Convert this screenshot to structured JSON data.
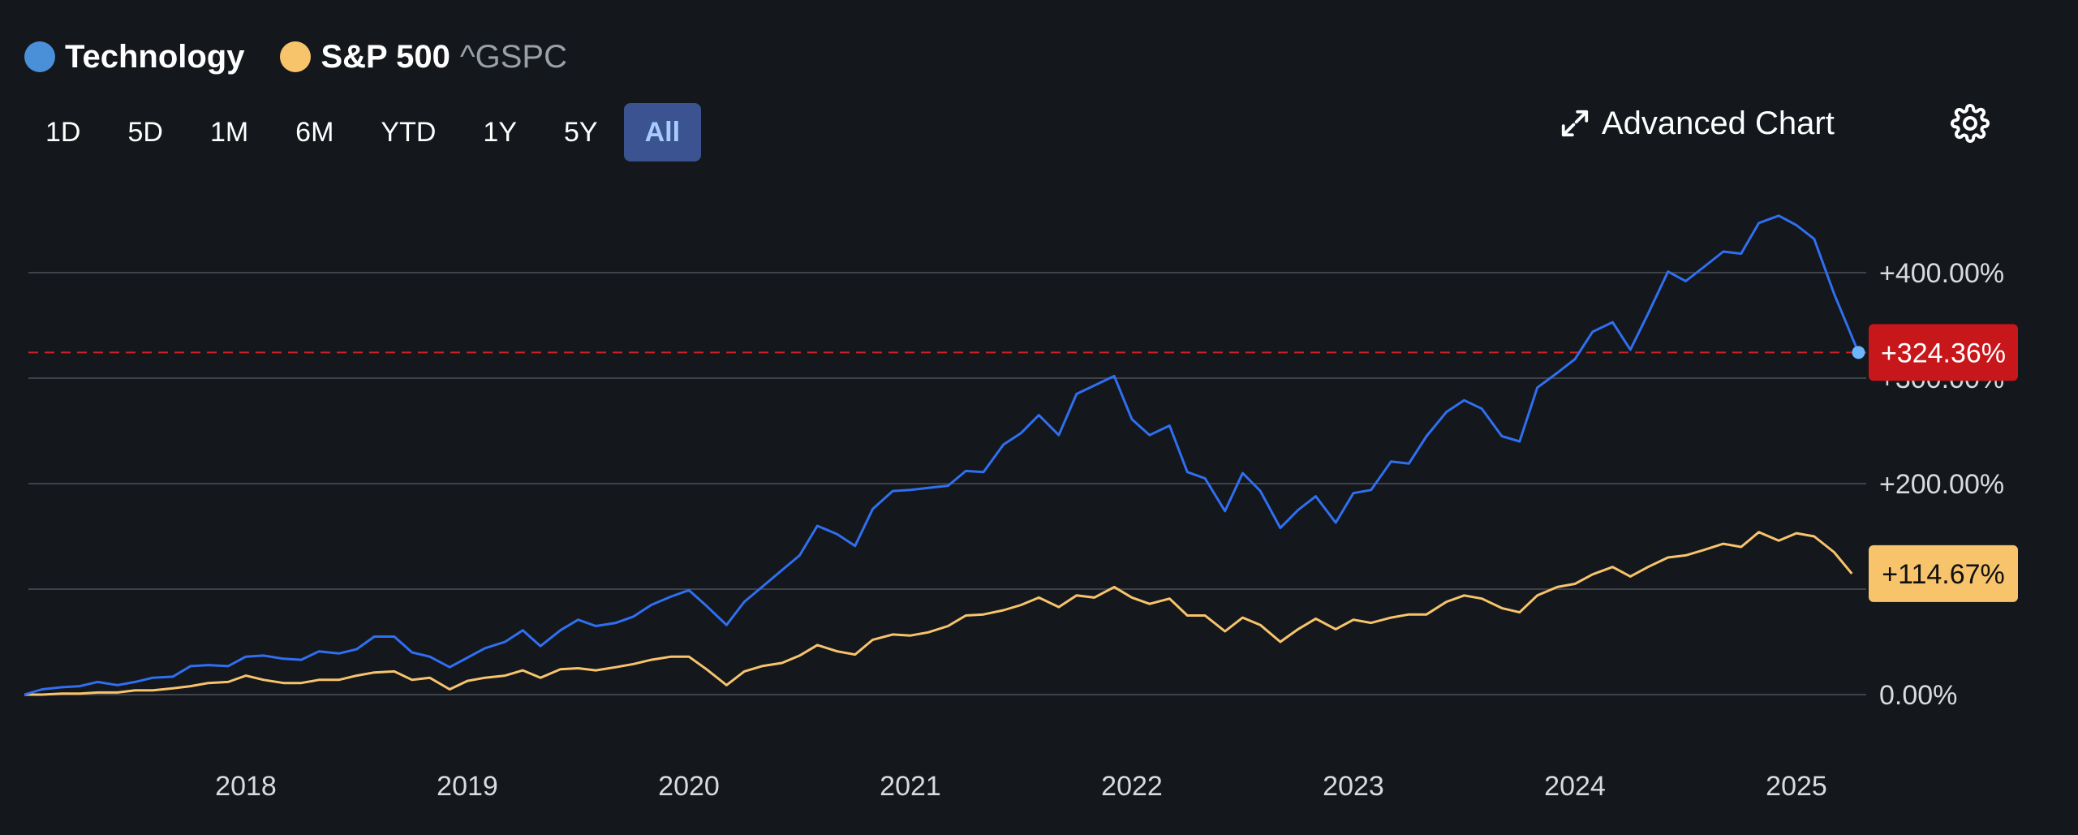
{
  "legend": [
    {
      "name": "Technology",
      "ticker": "",
      "color": "#4a90d9"
    },
    {
      "name": "S&P 500",
      "ticker": "^GSPC",
      "color": "#f7c46c"
    }
  ],
  "ranges": [
    "1D",
    "5D",
    "1M",
    "6M",
    "YTD",
    "1Y",
    "5Y",
    "All"
  ],
  "active_range": "All",
  "toolbar": {
    "advanced_chart_label": "Advanced Chart"
  },
  "chart_data": {
    "type": "line",
    "xlabel": "",
    "ylabel": "",
    "x_ticks": [
      "2018",
      "2019",
      "2020",
      "2021",
      "2022",
      "2023",
      "2024",
      "2025"
    ],
    "y_ticks": [
      "+400.00%",
      "+300.00%",
      "+200.00%",
      "+100.00%",
      "0.00%"
    ],
    "ylim": [
      0,
      450
    ],
    "grid": true,
    "current_line": {
      "value": 324.36,
      "label": "+324.36%",
      "color": "#d31f24"
    },
    "series": [
      {
        "name": "Technology",
        "color": "#2f6ff0",
        "end_label": "+324.36%",
        "end_label_bg": "#c7171b",
        "end_label_fg": "#ffffff",
        "points": [
          [
            2017.0,
            0
          ],
          [
            2017.08,
            5
          ],
          [
            2017.17,
            7
          ],
          [
            2017.25,
            8
          ],
          [
            2017.33,
            12
          ],
          [
            2017.42,
            9
          ],
          [
            2017.5,
            12
          ],
          [
            2017.58,
            16
          ],
          [
            2017.67,
            17
          ],
          [
            2017.75,
            27
          ],
          [
            2017.83,
            28
          ],
          [
            2017.92,
            27
          ],
          [
            2018.0,
            36
          ],
          [
            2018.08,
            37
          ],
          [
            2018.17,
            34
          ],
          [
            2018.25,
            33
          ],
          [
            2018.33,
            41
          ],
          [
            2018.42,
            39
          ],
          [
            2018.5,
            43
          ],
          [
            2018.58,
            55
          ],
          [
            2018.67,
            55
          ],
          [
            2018.75,
            40
          ],
          [
            2018.83,
            36
          ],
          [
            2018.92,
            26
          ],
          [
            2019.0,
            35
          ],
          [
            2019.08,
            44
          ],
          [
            2019.17,
            50
          ],
          [
            2019.25,
            61
          ],
          [
            2019.33,
            46
          ],
          [
            2019.42,
            61
          ],
          [
            2019.5,
            71
          ],
          [
            2019.58,
            65
          ],
          [
            2019.67,
            68
          ],
          [
            2019.75,
            74
          ],
          [
            2019.83,
            85
          ],
          [
            2019.92,
            93
          ],
          [
            2020.0,
            99
          ],
          [
            2020.08,
            84
          ],
          [
            2020.17,
            66
          ],
          [
            2020.25,
            88
          ],
          [
            2020.33,
            102
          ],
          [
            2020.42,
            118
          ],
          [
            2020.5,
            132
          ],
          [
            2020.58,
            160
          ],
          [
            2020.67,
            152
          ],
          [
            2020.75,
            141
          ],
          [
            2020.83,
            176
          ],
          [
            2020.92,
            193
          ],
          [
            2021.0,
            194
          ],
          [
            2021.08,
            196
          ],
          [
            2021.17,
            198
          ],
          [
            2021.25,
            212
          ],
          [
            2021.33,
            211
          ],
          [
            2021.42,
            237
          ],
          [
            2021.5,
            248
          ],
          [
            2021.58,
            265
          ],
          [
            2021.67,
            246
          ],
          [
            2021.75,
            285
          ],
          [
            2021.83,
            293
          ],
          [
            2021.92,
            302
          ],
          [
            2022.0,
            261
          ],
          [
            2022.08,
            246
          ],
          [
            2022.17,
            255
          ],
          [
            2022.25,
            211
          ],
          [
            2022.33,
            205
          ],
          [
            2022.42,
            174
          ],
          [
            2022.5,
            210
          ],
          [
            2022.58,
            193
          ],
          [
            2022.67,
            158
          ],
          [
            2022.75,
            175
          ],
          [
            2022.83,
            188
          ],
          [
            2022.92,
            163
          ],
          [
            2023.0,
            191
          ],
          [
            2023.08,
            194
          ],
          [
            2023.17,
            221
          ],
          [
            2023.25,
            219
          ],
          [
            2023.33,
            245
          ],
          [
            2023.42,
            268
          ],
          [
            2023.5,
            279
          ],
          [
            2023.58,
            271
          ],
          [
            2023.67,
            245
          ],
          [
            2023.75,
            240
          ],
          [
            2023.83,
            291
          ],
          [
            2023.92,
            305
          ],
          [
            2024.0,
            318
          ],
          [
            2024.08,
            344
          ],
          [
            2024.17,
            353
          ],
          [
            2024.25,
            327
          ],
          [
            2024.33,
            361
          ],
          [
            2024.42,
            401
          ],
          [
            2024.5,
            392
          ],
          [
            2024.58,
            405
          ],
          [
            2024.67,
            420
          ],
          [
            2024.75,
            418
          ],
          [
            2024.83,
            447
          ],
          [
            2024.92,
            454
          ],
          [
            2025.0,
            445
          ],
          [
            2025.08,
            432
          ],
          [
            2025.17,
            380
          ],
          [
            2025.28,
            324.36
          ]
        ]
      },
      {
        "name": "S&P 500",
        "color": "#f7c46c",
        "end_label": "+114.67%",
        "end_label_bg": "#f7c46c",
        "end_label_fg": "#111111",
        "points": [
          [
            2017.0,
            0
          ],
          [
            2017.08,
            0
          ],
          [
            2017.17,
            1
          ],
          [
            2017.25,
            1
          ],
          [
            2017.33,
            2
          ],
          [
            2017.42,
            2
          ],
          [
            2017.5,
            4
          ],
          [
            2017.58,
            4
          ],
          [
            2017.67,
            6
          ],
          [
            2017.75,
            8
          ],
          [
            2017.83,
            11
          ],
          [
            2017.92,
            12
          ],
          [
            2018.0,
            18
          ],
          [
            2018.08,
            14
          ],
          [
            2018.17,
            11
          ],
          [
            2018.25,
            11
          ],
          [
            2018.33,
            14
          ],
          [
            2018.42,
            14
          ],
          [
            2018.5,
            18
          ],
          [
            2018.58,
            21
          ],
          [
            2018.67,
            22
          ],
          [
            2018.75,
            14
          ],
          [
            2018.83,
            16
          ],
          [
            2018.92,
            5
          ],
          [
            2019.0,
            13
          ],
          [
            2019.08,
            16
          ],
          [
            2019.17,
            18
          ],
          [
            2019.25,
            23
          ],
          [
            2019.33,
            16
          ],
          [
            2019.42,
            24
          ],
          [
            2019.5,
            25
          ],
          [
            2019.58,
            23
          ],
          [
            2019.67,
            26
          ],
          [
            2019.75,
            29
          ],
          [
            2019.83,
            33
          ],
          [
            2019.92,
            36
          ],
          [
            2020.0,
            36
          ],
          [
            2020.08,
            24
          ],
          [
            2020.17,
            9
          ],
          [
            2020.25,
            22
          ],
          [
            2020.33,
            27
          ],
          [
            2020.42,
            30
          ],
          [
            2020.5,
            37
          ],
          [
            2020.58,
            47
          ],
          [
            2020.67,
            41
          ],
          [
            2020.75,
            38
          ],
          [
            2020.83,
            52
          ],
          [
            2020.92,
            57
          ],
          [
            2021.0,
            56
          ],
          [
            2021.08,
            59
          ],
          [
            2021.17,
            65
          ],
          [
            2021.25,
            75
          ],
          [
            2021.33,
            76
          ],
          [
            2021.42,
            80
          ],
          [
            2021.5,
            85
          ],
          [
            2021.58,
            92
          ],
          [
            2021.67,
            83
          ],
          [
            2021.75,
            94
          ],
          [
            2021.83,
            92
          ],
          [
            2021.92,
            102
          ],
          [
            2022.0,
            92
          ],
          [
            2022.08,
            86
          ],
          [
            2022.17,
            91
          ],
          [
            2022.25,
            75
          ],
          [
            2022.33,
            75
          ],
          [
            2022.42,
            60
          ],
          [
            2022.5,
            73
          ],
          [
            2022.58,
            66
          ],
          [
            2022.67,
            50
          ],
          [
            2022.75,
            62
          ],
          [
            2022.83,
            72
          ],
          [
            2022.92,
            62
          ],
          [
            2023.0,
            71
          ],
          [
            2023.08,
            68
          ],
          [
            2023.17,
            73
          ],
          [
            2023.25,
            76
          ],
          [
            2023.33,
            76
          ],
          [
            2023.42,
            88
          ],
          [
            2023.5,
            94
          ],
          [
            2023.58,
            91
          ],
          [
            2023.67,
            82
          ],
          [
            2023.75,
            78
          ],
          [
            2023.83,
            94
          ],
          [
            2023.92,
            102
          ],
          [
            2024.0,
            105
          ],
          [
            2024.08,
            114
          ],
          [
            2024.17,
            121
          ],
          [
            2024.25,
            112
          ],
          [
            2024.33,
            121
          ],
          [
            2024.42,
            130
          ],
          [
            2024.5,
            132
          ],
          [
            2024.58,
            137
          ],
          [
            2024.67,
            143
          ],
          [
            2024.75,
            140
          ],
          [
            2024.83,
            154
          ],
          [
            2024.92,
            146
          ],
          [
            2025.0,
            153
          ],
          [
            2025.08,
            150
          ],
          [
            2025.17,
            135
          ],
          [
            2025.25,
            114.67
          ]
        ]
      }
    ]
  }
}
